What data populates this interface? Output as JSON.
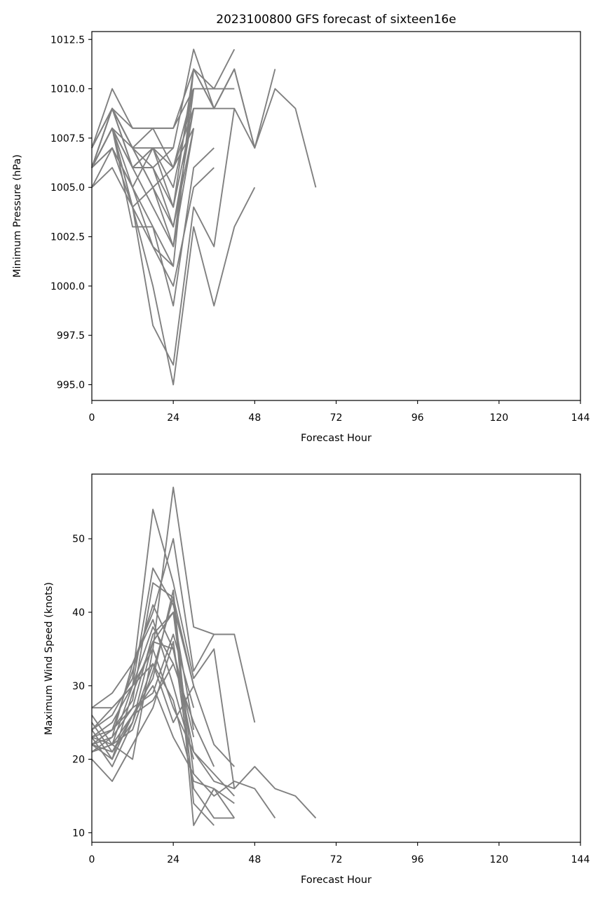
{
  "chart_data": [
    {
      "type": "line",
      "title": "2023100800 GFS forecast of sixteen16e",
      "xlabel": "Forecast Hour",
      "ylabel": "Minimum Pressure (hPa)",
      "xlim": [
        0,
        144
      ],
      "ylim": [
        994.2,
        1012.9
      ],
      "xticks": [
        0,
        24,
        48,
        72,
        96,
        120,
        144
      ],
      "yticks": [
        995.0,
        997.5,
        1000.0,
        1002.5,
        1005.0,
        1007.5,
        1010.0,
        1012.5
      ],
      "tick_decimals": 1,
      "grid": false,
      "line_color": "#808080",
      "series": [
        {
          "x": [
            0,
            6,
            12,
            18,
            24,
            30,
            36,
            42
          ],
          "y": [
            1007,
            1010,
            1008,
            1008,
            1008,
            1011,
            1010,
            1012
          ]
        },
        {
          "x": [
            0,
            6,
            12,
            18,
            24,
            30,
            36,
            42
          ],
          "y": [
            1006,
            1009,
            1007,
            1007,
            1007,
            1012,
            1009,
            1011
          ]
        },
        {
          "x": [
            0,
            6,
            12,
            18,
            24,
            30,
            36,
            42
          ],
          "y": [
            1006,
            1008,
            1006,
            1007,
            1005,
            1010,
            1010,
            1010
          ]
        },
        {
          "x": [
            0,
            6,
            12,
            18,
            24,
            30,
            36,
            42,
            48
          ],
          "y": [
            1006,
            1008,
            1006,
            1006,
            1004,
            1011,
            1009,
            1011,
            1007
          ]
        },
        {
          "x": [
            0,
            6,
            12,
            18,
            24,
            30,
            36,
            42,
            48,
            54,
            60,
            66
          ],
          "y": [
            1006,
            1009,
            1007,
            1005,
            1003,
            1009,
            1009,
            1009,
            1007,
            1010,
            1009,
            1005
          ]
        },
        {
          "x": [
            0,
            6,
            12,
            18,
            24,
            30,
            36,
            42,
            48,
            54
          ],
          "y": [
            1005,
            1007,
            1005,
            1002,
            1001,
            1011,
            1009,
            1011,
            1007,
            1011
          ]
        },
        {
          "x": [
            0,
            6,
            12,
            18,
            24,
            30,
            36,
            42,
            48
          ],
          "y": [
            1006,
            1008,
            1004,
            1000,
            995,
            1003,
            999,
            1003,
            1005
          ]
        },
        {
          "x": [
            0,
            6,
            12,
            18,
            24,
            30,
            36,
            42
          ],
          "y": [
            1006,
            1007,
            1004,
            998,
            996,
            1004,
            1002,
            1009
          ]
        },
        {
          "x": [
            0,
            6,
            12,
            18,
            24,
            30,
            36
          ],
          "y": [
            1006,
            1008,
            1003,
            1003,
            999,
            1006,
            1007
          ]
        },
        {
          "x": [
            0,
            6,
            12,
            18,
            24,
            30,
            36
          ],
          "y": [
            1006,
            1008,
            1004,
            1002,
            1000,
            1005,
            1006
          ]
        },
        {
          "x": [
            0,
            6,
            12,
            18,
            24,
            30
          ],
          "y": [
            1007,
            1009,
            1006,
            1004,
            1002,
            1008
          ]
        },
        {
          "x": [
            0,
            6,
            12,
            18,
            24,
            30,
            36
          ],
          "y": [
            1006,
            1009,
            1007,
            1008,
            1006,
            1009,
            1009
          ]
        },
        {
          "x": [
            0,
            6,
            12,
            18,
            24,
            30
          ],
          "y": [
            1007,
            1009,
            1008,
            1008,
            1008,
            1010
          ]
        },
        {
          "x": [
            0,
            6,
            12,
            18,
            24,
            30
          ],
          "y": [
            1006,
            1008,
            1007,
            1005,
            1002,
            1010
          ]
        },
        {
          "x": [
            0,
            6,
            12,
            18,
            24,
            30
          ],
          "y": [
            1006,
            1009,
            1006,
            1006,
            1003,
            1008
          ]
        },
        {
          "x": [
            0,
            6,
            12,
            18,
            24,
            30
          ],
          "y": [
            1005,
            1006,
            1004,
            1005,
            1006,
            1010
          ]
        },
        {
          "x": [
            0,
            6,
            12,
            18,
            24,
            30
          ],
          "y": [
            1006,
            1008,
            1005,
            1007,
            1006,
            1008
          ]
        },
        {
          "x": [
            0,
            6,
            12,
            18,
            24,
            30
          ],
          "y": [
            1006,
            1009,
            1006,
            1007,
            1004,
            1009
          ]
        },
        {
          "x": [
            0,
            6,
            12,
            18,
            24
          ],
          "y": [
            1006,
            1007,
            1005,
            1003,
            1001
          ]
        },
        {
          "x": [
            0,
            6,
            12,
            18,
            24
          ],
          "y": [
            1007,
            1009,
            1007,
            1006,
            1007
          ]
        }
      ]
    },
    {
      "type": "line",
      "title": "",
      "xlabel": "Forecast Hour",
      "ylabel": "Maximum Wind Speed (knots)",
      "xlim": [
        0,
        144
      ],
      "ylim": [
        8.7,
        58.8
      ],
      "xticks": [
        0,
        24,
        48,
        72,
        96,
        120,
        144
      ],
      "yticks": [
        10,
        20,
        30,
        40,
        50
      ],
      "tick_decimals": 0,
      "grid": false,
      "line_color": "#808080",
      "series": [
        {
          "x": [
            0,
            6,
            12,
            18,
            24,
            30,
            36,
            42
          ],
          "y": [
            27,
            27,
            30,
            35,
            57,
            38,
            37,
            37
          ]
        },
        {
          "x": [
            0,
            6,
            12,
            18,
            24,
            30,
            36,
            42,
            48
          ],
          "y": [
            27,
            29,
            33,
            40,
            50,
            32,
            37,
            37,
            25
          ]
        },
        {
          "x": [
            0,
            6,
            12,
            18,
            24,
            30,
            36,
            42
          ],
          "y": [
            24,
            26,
            31,
            54,
            44,
            31,
            35,
            16
          ]
        },
        {
          "x": [
            0,
            6,
            12,
            18,
            24,
            30,
            36,
            42
          ],
          "y": [
            23,
            25,
            30,
            46,
            41,
            30,
            22,
            19
          ]
        },
        {
          "x": [
            0,
            6,
            12,
            18,
            24,
            30,
            36,
            42,
            48,
            54,
            60,
            66
          ],
          "y": [
            22,
            24,
            32,
            41,
            35,
            21,
            17,
            16,
            19,
            16,
            15,
            12
          ]
        },
        {
          "x": [
            0,
            6,
            12,
            18,
            24,
            30,
            36,
            42,
            48,
            54
          ],
          "y": [
            22,
            23,
            27,
            37,
            40,
            18,
            15,
            17,
            16,
            12
          ]
        },
        {
          "x": [
            0,
            6,
            12,
            18,
            24,
            30,
            36,
            42
          ],
          "y": [
            21,
            22,
            24,
            32,
            42,
            11,
            16,
            12
          ]
        },
        {
          "x": [
            0,
            6,
            12,
            18,
            24,
            30,
            36,
            42
          ],
          "y": [
            20,
            17,
            22,
            27,
            36,
            16,
            12,
            12
          ]
        },
        {
          "x": [
            0,
            6,
            12,
            18,
            24,
            30,
            36
          ],
          "y": [
            22,
            21,
            26,
            31,
            43,
            14,
            11
          ]
        },
        {
          "x": [
            0,
            6,
            12,
            18,
            24,
            30,
            36,
            42
          ],
          "y": [
            23,
            19,
            25,
            33,
            28,
            17,
            16,
            14
          ]
        },
        {
          "x": [
            0,
            6,
            12,
            18,
            24,
            30,
            36,
            42
          ],
          "y": [
            21,
            22,
            20,
            35,
            27,
            21,
            18,
            15
          ]
        },
        {
          "x": [
            0,
            6,
            12,
            18,
            24,
            30,
            36
          ],
          "y": [
            24,
            27,
            30,
            38,
            33,
            25,
            19
          ]
        },
        {
          "x": [
            0,
            6,
            12,
            18,
            24,
            30
          ],
          "y": [
            23,
            24,
            28,
            44,
            42,
            30
          ]
        },
        {
          "x": [
            0,
            6,
            12,
            18,
            24,
            30
          ],
          "y": [
            22,
            20,
            29,
            36,
            40,
            24
          ]
        },
        {
          "x": [
            0,
            6,
            12,
            18,
            24,
            30
          ],
          "y": [
            21,
            23,
            33,
            39,
            30,
            20
          ]
        },
        {
          "x": [
            0,
            6,
            12,
            18,
            24,
            30
          ],
          "y": [
            25,
            21,
            25,
            36,
            35,
            23
          ]
        },
        {
          "x": [
            0,
            6,
            12,
            18,
            24,
            30
          ],
          "y": [
            22,
            24,
            27,
            29,
            37,
            27
          ]
        },
        {
          "x": [
            0,
            6,
            12,
            18,
            24,
            30
          ],
          "y": [
            26,
            22,
            30,
            33,
            25,
            30
          ]
        },
        {
          "x": [
            0,
            6,
            12,
            18,
            24,
            30
          ],
          "y": [
            24,
            20,
            26,
            30,
            23,
            18
          ]
        },
        {
          "x": [
            0,
            6,
            12,
            18,
            24
          ],
          "y": [
            23,
            22,
            26,
            28,
            33
          ]
        }
      ]
    }
  ]
}
